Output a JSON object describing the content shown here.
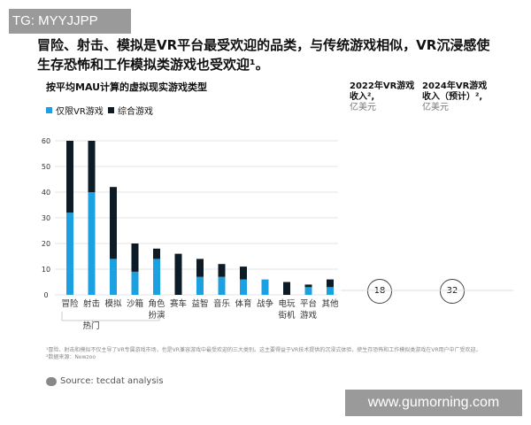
{
  "badge": "TG: MYYJJPP",
  "title": "冒险、射击、模拟是VR平台最受欢迎的品类，与传统游戏相似，VR沉浸感使生存恐怖和工作模拟类游戏也受欢迎¹。",
  "columns": [
    {
      "title": "2022年VR游戏",
      "line2": "收入²,",
      "unit": "亿美元",
      "value": "18"
    },
    {
      "title": "2024年VR游戏",
      "line2": "收入（预计）²,",
      "unit": "亿美元",
      "value": "32"
    }
  ],
  "footnote1": "¹冒险、射击和模拟不仅主导了VR专属游戏市场，也是VR兼容游戏中最受欢迎的三大类别。这主要得益于VR技术提供的沉浸式体验，使生存恐怖和工作模拟类游戏在VR用户中广受欢迎。",
  "footnote2": "²数据来源：Newzoo",
  "source": "Source: tecdat analysis",
  "watermark": "www.gumorning.com",
  "chart_data": {
    "type": "bar",
    "stacked": true,
    "title": "按平均MAU计算的虚拟现实游戏类型",
    "categories": [
      "冒险",
      "射击",
      "模拟",
      "沙箱",
      "角色\n扮演",
      "赛车",
      "益智",
      "音乐",
      "体育",
      "战争",
      "电玩\n街机",
      "平台\n游戏",
      "其他"
    ],
    "group_label": "热门",
    "series": [
      {
        "name": "仅限VR游戏",
        "color": "#1ba1e2",
        "values": [
          32,
          40,
          14,
          9,
          14,
          0,
          7,
          7,
          6,
          6,
          0,
          3,
          3
        ]
      },
      {
        "name": "综合游戏",
        "color": "#0d1b26",
        "values": [
          28,
          20,
          28,
          11,
          4,
          16,
          7,
          5,
          5,
          0,
          5,
          1,
          3
        ]
      }
    ],
    "yticks": [
      0,
      10,
      20,
      30,
      40,
      50,
      60
    ],
    "ylim": [
      0,
      60
    ],
    "grid": true,
    "legend": "top-left"
  }
}
